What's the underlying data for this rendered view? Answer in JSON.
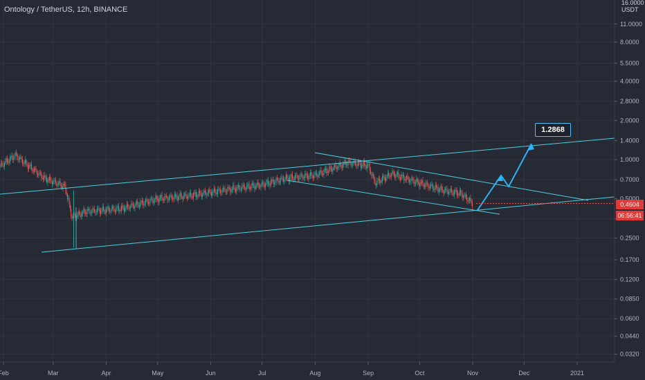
{
  "header": {
    "title": "Ontology / TetherUS, 12h, BINANCE"
  },
  "axis": {
    "currency_top": "16.0000",
    "currency": "USDT"
  },
  "tags": {
    "last_price": "0.4604",
    "countdown": "06:56:41",
    "target": "1.2868"
  },
  "colors": {
    "background": "#262a34",
    "line": "#4dd0e1",
    "arrow": "#29b6f6",
    "up": "#26a69a",
    "down": "#ef5350",
    "price_tag": "#e53935"
  },
  "chart_data": {
    "type": "candlestick",
    "title": "Ontology / TetherUS, 12h, BINANCE",
    "scale": "log",
    "x_ticks": [
      "Feb",
      "Mar",
      "Apr",
      "May",
      "Jun",
      "Jul",
      "Aug",
      "Sep",
      "Oct",
      "Nov",
      "Dec",
      "2021"
    ],
    "y_ticks": [
      11.0,
      8.0,
      5.5,
      4.0,
      2.8,
      2.0,
      1.4,
      1.0,
      0.7,
      0.5,
      0.35,
      0.25,
      0.17,
      0.12,
      0.085,
      0.06,
      0.044,
      0.032
    ],
    "y_tick_labels": [
      "11.0000",
      "8.0000",
      "5.5000",
      "4.0000",
      "2.8000",
      "2.0000",
      "1.4000",
      "1.0000",
      "0.7000",
      "0.5000",
      "",
      "0.2500",
      "0.1700",
      "0.1200",
      "0.0850",
      "0.0600",
      "0.0440",
      "0.0320"
    ],
    "price_path": [
      {
        "date": "2020-01-26",
        "price": 0.82
      },
      {
        "date": "2020-02-08",
        "price": 1.08
      },
      {
        "date": "2020-02-14",
        "price": 0.93
      },
      {
        "date": "2020-02-25",
        "price": 0.72
      },
      {
        "date": "2020-03-08",
        "price": 0.62
      },
      {
        "date": "2020-03-12",
        "price": 0.36
      },
      {
        "date": "2020-03-20",
        "price": 0.4
      },
      {
        "date": "2020-04-10",
        "price": 0.42
      },
      {
        "date": "2020-05-01",
        "price": 0.5
      },
      {
        "date": "2020-05-20",
        "price": 0.53
      },
      {
        "date": "2020-06-15",
        "price": 0.6
      },
      {
        "date": "2020-07-01",
        "price": 0.64
      },
      {
        "date": "2020-07-15",
        "price": 0.72
      },
      {
        "date": "2020-08-01",
        "price": 0.76
      },
      {
        "date": "2020-08-20",
        "price": 0.95
      },
      {
        "date": "2020-09-01",
        "price": 0.9
      },
      {
        "date": "2020-09-05",
        "price": 0.66
      },
      {
        "date": "2020-09-15",
        "price": 0.78
      },
      {
        "date": "2020-09-25",
        "price": 0.7
      },
      {
        "date": "2020-10-15",
        "price": 0.58
      },
      {
        "date": "2020-10-25",
        "price": 0.55
      },
      {
        "date": "2020-11-01",
        "price": 0.46
      }
    ],
    "last_price": 0.4604,
    "target_price": 1.2868
  }
}
